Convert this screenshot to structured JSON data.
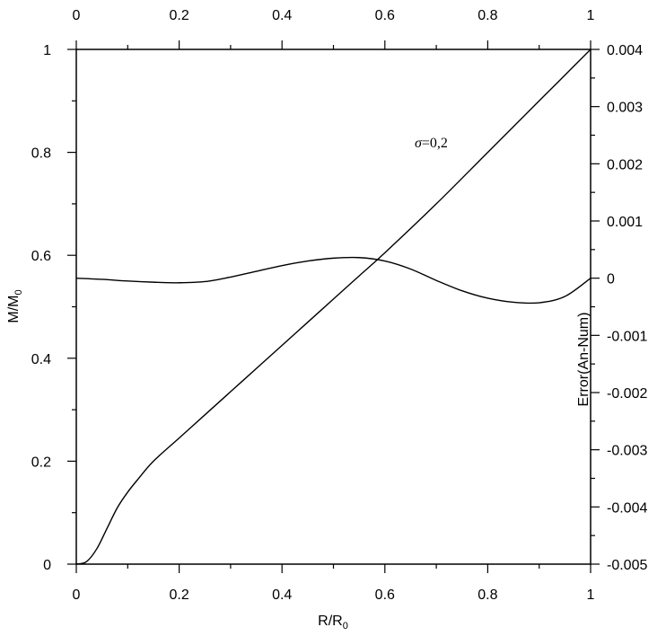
{
  "chart_data": {
    "type": "line",
    "annotation": {
      "symbol": "σ",
      "text": "=0,2"
    },
    "x_axis": {
      "label_main": "R/R",
      "label_sub": "0",
      "range": [
        0,
        1
      ],
      "ticks": [
        "0",
        "0.2",
        "0.4",
        "0.6",
        "0.8",
        "1"
      ],
      "top_ticks": [
        "0",
        "0.2",
        "0.4",
        "0.6",
        "0.8",
        "1"
      ]
    },
    "y_left": {
      "label_main": "M/M",
      "label_sub": "0",
      "range": [
        0,
        1
      ],
      "ticks": [
        "0",
        "0.2",
        "0.4",
        "0.6",
        "0.8",
        "1"
      ]
    },
    "y_right": {
      "label": "Error(An-Num)",
      "range": [
        -0.005,
        0.004
      ],
      "ticks": [
        "-0.005",
        "-0.004",
        "-0.003",
        "-0.002",
        "-0.001",
        "0",
        "0.001",
        "0.002",
        "0.003",
        "0.004"
      ]
    },
    "grid": false,
    "legend": "none",
    "series": [
      {
        "axis": "left",
        "x": [
          0,
          0.02,
          0.04,
          0.06,
          0.08,
          0.1,
          0.12,
          0.15,
          0.2,
          0.25,
          0.3,
          0.35,
          0.4,
          0.45,
          0.5,
          0.55,
          0.6,
          0.7,
          0.8,
          0.9,
          1.0
        ],
        "y": [
          0,
          0.005,
          0.03,
          0.07,
          0.11,
          0.14,
          0.165,
          0.2,
          0.245,
          0.29,
          0.335,
          0.38,
          0.425,
          0.47,
          0.515,
          0.56,
          0.605,
          0.7,
          0.8,
          0.9,
          1.0
        ]
      },
      {
        "axis": "right",
        "x": [
          0,
          0.05,
          0.1,
          0.15,
          0.2,
          0.25,
          0.3,
          0.35,
          0.4,
          0.45,
          0.5,
          0.55,
          0.6,
          0.65,
          0.7,
          0.75,
          0.8,
          0.85,
          0.9,
          0.95,
          1.0
        ],
        "y": [
          0,
          -2e-05,
          -5e-05,
          -7e-05,
          -8e-05,
          -6e-05,
          2e-05,
          0.00012,
          0.00022,
          0.0003,
          0.00035,
          0.00036,
          0.0003,
          0.00016,
          -4e-05,
          -0.00022,
          -0.00035,
          -0.00042,
          -0.00043,
          -0.00032,
          0
        ]
      }
    ]
  }
}
